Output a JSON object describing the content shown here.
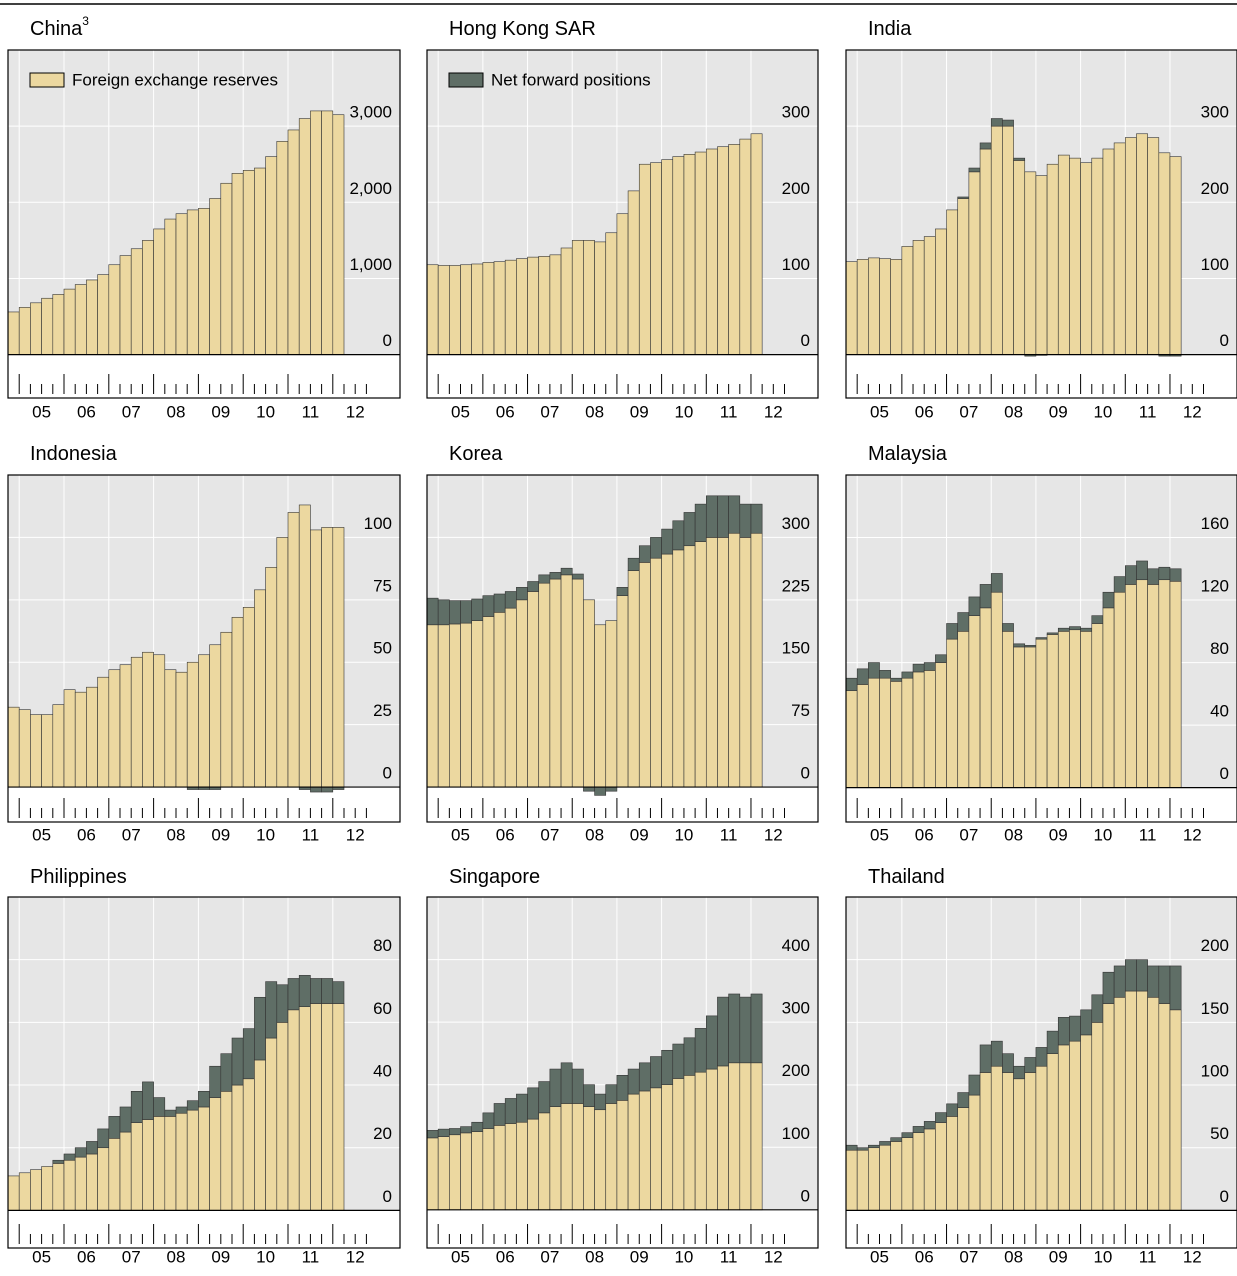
{
  "legend": [
    {
      "name": "Foreign exchange reserves",
      "color": "#ecd8a0"
    },
    {
      "name": "Net forward positions",
      "color": "#5f6e66"
    }
  ],
  "x": [
    2004.75,
    2005,
    2005.25,
    2005.5,
    2005.75,
    2006,
    2006.25,
    2006.5,
    2006.75,
    2007,
    2007.25,
    2007.5,
    2007.75,
    2008,
    2008.25,
    2008.5,
    2008.75,
    2009,
    2009.25,
    2009.5,
    2009.75,
    2010,
    2010.25,
    2010.5,
    2010.75,
    2011,
    2011.25,
    2011.5,
    2011.75,
    2012
  ],
  "xlim": [
    2004.75,
    2013.5
  ],
  "xticks": [
    {
      "value": 2005.5,
      "label": "05"
    },
    {
      "value": 2006.5,
      "label": "06"
    },
    {
      "value": 2007.5,
      "label": "07"
    },
    {
      "value": 2008.5,
      "label": "08"
    },
    {
      "value": 2009.5,
      "label": "09"
    },
    {
      "value": 2010.5,
      "label": "10"
    },
    {
      "value": 2011.5,
      "label": "11"
    },
    {
      "value": 2012.5,
      "label": "12"
    }
  ],
  "chart_data": [
    {
      "type": "stacked_bar",
      "title": "China",
      "title_note": "3",
      "ylim": [
        -570,
        4000
      ],
      "yticks": [
        0,
        {
          "value": 1000,
          "label": "1,000"
        },
        {
          "value": 2000,
          "label": "2,000"
        },
        {
          "value": 3000,
          "label": "3,000"
        }
      ],
      "series": [
        {
          "values": [
            560,
            620,
            680,
            740,
            790,
            860,
            920,
            980,
            1050,
            1180,
            1300,
            1390,
            1500,
            1650,
            1780,
            1850,
            1900,
            1920,
            2050,
            2250,
            2380,
            2420,
            2450,
            2600,
            2800,
            2950,
            3100,
            3200,
            3200,
            3150
          ]
        },
        {
          "values": [
            0,
            0,
            0,
            0,
            0,
            0,
            0,
            0,
            0,
            0,
            0,
            0,
            0,
            0,
            0,
            0,
            0,
            0,
            0,
            0,
            0,
            0,
            0,
            0,
            0,
            0,
            0,
            0,
            0,
            0
          ]
        }
      ]
    },
    {
      "type": "stacked_bar",
      "title": "Hong Kong SAR",
      "ylim": [
        -57,
        400
      ],
      "yticks": [
        0,
        100,
        200,
        300
      ],
      "series": [
        {
          "values": [
            118,
            117,
            117,
            118,
            119,
            121,
            122,
            124,
            126,
            128,
            129,
            131,
            140,
            150,
            150,
            148,
            160,
            185,
            215,
            250,
            252,
            256,
            260,
            263,
            266,
            270,
            273,
            276,
            283,
            290
          ]
        },
        {
          "values": [
            0,
            0,
            0,
            0,
            0,
            0,
            0,
            0,
            0,
            0,
            0,
            0,
            0,
            0,
            0,
            0,
            0,
            0,
            0,
            0,
            0,
            0,
            0,
            0,
            0,
            0,
            0,
            0,
            0,
            0
          ]
        }
      ]
    },
    {
      "type": "stacked_bar",
      "title": "India",
      "ylim": [
        -57,
        400
      ],
      "yticks": [
        0,
        100,
        200,
        300
      ],
      "series": [
        {
          "values": [
            122,
            125,
            127,
            126,
            125,
            142,
            150,
            155,
            165,
            190,
            205,
            240,
            270,
            300,
            300,
            255,
            240,
            235,
            250,
            262,
            258,
            252,
            258,
            270,
            278,
            285,
            290,
            285,
            265,
            260
          ]
        },
        {
          "values": [
            0,
            0,
            0,
            0,
            0,
            0,
            0,
            0,
            0,
            0,
            2,
            5,
            8,
            10,
            8,
            3,
            -2,
            -1,
            0,
            0,
            0,
            0,
            0,
            0,
            0,
            0,
            0,
            0,
            -2,
            -2
          ]
        }
      ]
    },
    {
      "type": "stacked_bar",
      "title": "Indonesia",
      "ylim": [
        -14,
        125
      ],
      "yticks": [
        0,
        25,
        50,
        75,
        100
      ],
      "series": [
        {
          "values": [
            32,
            31,
            29,
            29,
            33,
            39,
            38,
            40,
            44,
            47,
            49,
            52,
            54,
            53,
            47,
            46,
            50,
            53,
            57,
            62,
            68,
            72,
            79,
            88,
            100,
            110,
            113,
            103,
            104,
            104
          ]
        },
        {
          "values": [
            0,
            0,
            0,
            0,
            0,
            0,
            0,
            0,
            0,
            0,
            0,
            0,
            0,
            0,
            0,
            0,
            -1,
            -1,
            -1,
            0,
            0,
            0,
            0,
            0,
            0,
            0,
            -1,
            -2,
            -2,
            -1
          ]
        }
      ]
    },
    {
      "type": "stacked_bar",
      "title": "Korea",
      "ylim": [
        -42,
        375
      ],
      "yticks": [
        0,
        75,
        150,
        225,
        300
      ],
      "series": [
        {
          "values": [
            195,
            195,
            196,
            197,
            200,
            205,
            210,
            215,
            225,
            235,
            245,
            250,
            255,
            250,
            225,
            195,
            200,
            230,
            260,
            270,
            275,
            280,
            285,
            290,
            295,
            300,
            300,
            305,
            300,
            305
          ]
        },
        {
          "values": [
            32,
            30,
            28,
            27,
            26,
            25,
            22,
            20,
            15,
            12,
            10,
            8,
            8,
            6,
            -5,
            -10,
            -5,
            10,
            15,
            20,
            25,
            30,
            35,
            40,
            45,
            50,
            50,
            45,
            40,
            35
          ]
        }
      ]
    },
    {
      "type": "stacked_bar",
      "title": "Malaysia",
      "ylim": [
        -22,
        200
      ],
      "yticks": [
        0,
        40,
        80,
        120,
        160
      ],
      "series": [
        {
          "values": [
            62,
            66,
            70,
            70,
            68,
            70,
            74,
            75,
            80,
            95,
            100,
            110,
            115,
            125,
            100,
            90,
            90,
            95,
            98,
            100,
            101,
            100,
            105,
            115,
            125,
            130,
            133,
            130,
            133,
            132
          ]
        },
        {
          "values": [
            8,
            10,
            10,
            5,
            2,
            4,
            5,
            5,
            5,
            10,
            12,
            12,
            15,
            12,
            5,
            2,
            1,
            1,
            1,
            2,
            2,
            2,
            5,
            10,
            10,
            12,
            12,
            10,
            8,
            8
          ]
        }
      ]
    },
    {
      "type": "stacked_bar",
      "title": "Philippines",
      "ylim": [
        -12,
        100
      ],
      "yticks": [
        0,
        20,
        40,
        60,
        80
      ],
      "series": [
        {
          "values": [
            11,
            12,
            13,
            14,
            15,
            16,
            17,
            18,
            20,
            23,
            25,
            28,
            29,
            30,
            30,
            31,
            32,
            33,
            36,
            38,
            40,
            42,
            48,
            55,
            60,
            64,
            65,
            66,
            66,
            66
          ]
        },
        {
          "values": [
            0,
            0,
            0,
            0,
            1,
            2,
            3,
            4,
            6,
            7,
            8,
            10,
            12,
            6,
            2,
            2,
            3,
            5,
            10,
            12,
            15,
            16,
            20,
            18,
            12,
            10,
            10,
            8,
            8,
            7
          ]
        }
      ]
    },
    {
      "type": "stacked_bar",
      "title": "Singapore",
      "ylim": [
        -61,
        500
      ],
      "yticks": [
        0,
        100,
        200,
        300,
        400
      ],
      "series": [
        {
          "values": [
            115,
            117,
            120,
            123,
            125,
            130,
            135,
            138,
            140,
            145,
            155,
            165,
            170,
            170,
            165,
            160,
            170,
            175,
            185,
            190,
            195,
            200,
            210,
            215,
            220,
            225,
            230,
            235,
            235,
            235
          ]
        },
        {
          "values": [
            12,
            12,
            10,
            10,
            15,
            25,
            35,
            40,
            45,
            50,
            50,
            60,
            65,
            55,
            35,
            25,
            30,
            40,
            40,
            45,
            50,
            55,
            55,
            60,
            70,
            85,
            110,
            110,
            105,
            110
          ]
        }
      ]
    },
    {
      "type": "stacked_bar",
      "title": "Thailand",
      "ylim": [
        -30,
        250
      ],
      "yticks": [
        0,
        50,
        100,
        150,
        200
      ],
      "series": [
        {
          "values": [
            48,
            48,
            50,
            52,
            55,
            58,
            62,
            65,
            70,
            75,
            82,
            92,
            110,
            115,
            110,
            105,
            110,
            115,
            125,
            132,
            135,
            140,
            150,
            165,
            170,
            175,
            175,
            170,
            165,
            160
          ]
        },
        {
          "values": [
            4,
            2,
            2,
            3,
            3,
            4,
            5,
            6,
            8,
            10,
            12,
            16,
            22,
            20,
            15,
            10,
            12,
            15,
            18,
            22,
            20,
            20,
            22,
            25,
            25,
            25,
            25,
            25,
            30,
            35
          ]
        }
      ]
    }
  ]
}
